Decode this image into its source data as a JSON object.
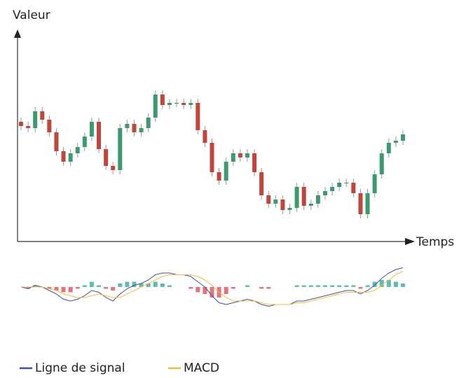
{
  "chart_data": [
    {
      "type": "candlestick",
      "y_label": "Valeur",
      "x_label": "Temps",
      "up_color": "#3c9a6e",
      "down_color": "#c0463c",
      "ylim": [
        0,
        100
      ],
      "open": [
        57,
        55,
        54,
        62,
        58,
        52,
        43,
        38,
        42,
        45,
        50,
        57,
        44,
        36,
        34,
        54,
        56,
        52,
        54,
        59,
        70,
        65,
        66,
        66,
        65,
        66,
        53,
        47,
        33,
        29,
        38,
        42,
        40,
        42,
        33,
        22,
        18,
        20,
        15,
        16,
        26,
        17,
        18,
        22,
        24,
        26,
        28,
        28,
        23,
        13,
        23,
        32,
        42,
        47,
        48
      ],
      "high": [
        59,
        57,
        64,
        64,
        60,
        54,
        45,
        44,
        47,
        52,
        59,
        59,
        46,
        38,
        56,
        58,
        58,
        56,
        61,
        72,
        72,
        68,
        68,
        68,
        68,
        68,
        55,
        49,
        35,
        40,
        44,
        44,
        44,
        44,
        35,
        24,
        22,
        22,
        18,
        28,
        28,
        20,
        24,
        26,
        28,
        30,
        30,
        30,
        25,
        25,
        34,
        44,
        49,
        50,
        53
      ],
      "low": [
        53,
        52,
        52,
        56,
        50,
        41,
        36,
        36,
        40,
        43,
        48,
        42,
        34,
        32,
        32,
        52,
        50,
        50,
        52,
        57,
        63,
        63,
        64,
        63,
        63,
        51,
        45,
        31,
        27,
        27,
        36,
        38,
        38,
        31,
        20,
        16,
        16,
        13,
        13,
        14,
        15,
        15,
        16,
        20,
        22,
        24,
        26,
        21,
        11,
        11,
        21,
        30,
        40,
        45,
        46
      ],
      "close": [
        55,
        54,
        62,
        58,
        52,
        43,
        38,
        42,
        45,
        50,
        57,
        44,
        36,
        34,
        54,
        56,
        52,
        54,
        59,
        70,
        65,
        66,
        66,
        65,
        66,
        53,
        47,
        33,
        29,
        38,
        42,
        40,
        42,
        33,
        22,
        18,
        20,
        15,
        16,
        26,
        17,
        18,
        22,
        24,
        26,
        28,
        28,
        23,
        13,
        23,
        32,
        42,
        47,
        48,
        51
      ]
    },
    {
      "type": "line",
      "ylim": [
        -8,
        8
      ],
      "series": [
        {
          "name": "Ligne de signal",
          "color": "#3f4fa8",
          "values": [
            0,
            -0.5,
            0.5,
            0,
            -1,
            -2,
            -3.5,
            -4,
            -3.5,
            -2.5,
            -1,
            -1.5,
            -3,
            -4,
            -2,
            -0.5,
            0.5,
            1,
            2,
            3.5,
            4,
            4,
            3.5,
            3.5,
            3,
            1.5,
            0,
            -2.5,
            -4.5,
            -5,
            -4.5,
            -4,
            -3.5,
            -4,
            -5,
            -5.5,
            -5,
            -5,
            -5,
            -4,
            -4,
            -3.5,
            -3,
            -2.5,
            -2,
            -1.5,
            -1,
            -1,
            -2,
            -1,
            0.5,
            2.5,
            4,
            5,
            5.5
          ]
        },
        {
          "name": "MACD",
          "color": "#f0bf3a",
          "values": [
            0,
            0,
            0,
            0,
            -0.5,
            -1,
            -2,
            -2.5,
            -3,
            -3,
            -2.5,
            -2,
            -2.5,
            -3,
            -3,
            -2,
            -1,
            0,
            1,
            2,
            3,
            3.5,
            3.5,
            3.5,
            3.5,
            3,
            2,
            0.5,
            -1.5,
            -3,
            -4,
            -4,
            -4,
            -4,
            -4.5,
            -5,
            -5,
            -5,
            -5,
            -4.5,
            -4.5,
            -4,
            -3.5,
            -3,
            -2.5,
            -2,
            -1.5,
            -1.5,
            -1.5,
            -1.5,
            -1,
            0.5,
            2,
            3.5,
            4.5
          ]
        }
      ],
      "histogram": {
        "up_color": "#3aaa9e",
        "down_color": "#e0505a",
        "values": [
          0,
          -0.5,
          0.5,
          0,
          -0.5,
          -1,
          -1.5,
          -1.5,
          -0.5,
          0.5,
          1.5,
          0.5,
          -0.5,
          -1,
          1,
          1.5,
          1.5,
          1,
          1,
          1.5,
          1,
          0.5,
          0,
          0,
          -0.5,
          -1.5,
          -2,
          -3,
          -3,
          -2,
          -0.5,
          0,
          0.5,
          0,
          -0.5,
          -0.5,
          0,
          0,
          0,
          0.5,
          0.5,
          0.5,
          0.5,
          0.5,
          0.5,
          0.5,
          0.5,
          0.5,
          -0.5,
          0.5,
          1.5,
          2,
          2,
          1.5,
          1
        ]
      }
    }
  ]
}
